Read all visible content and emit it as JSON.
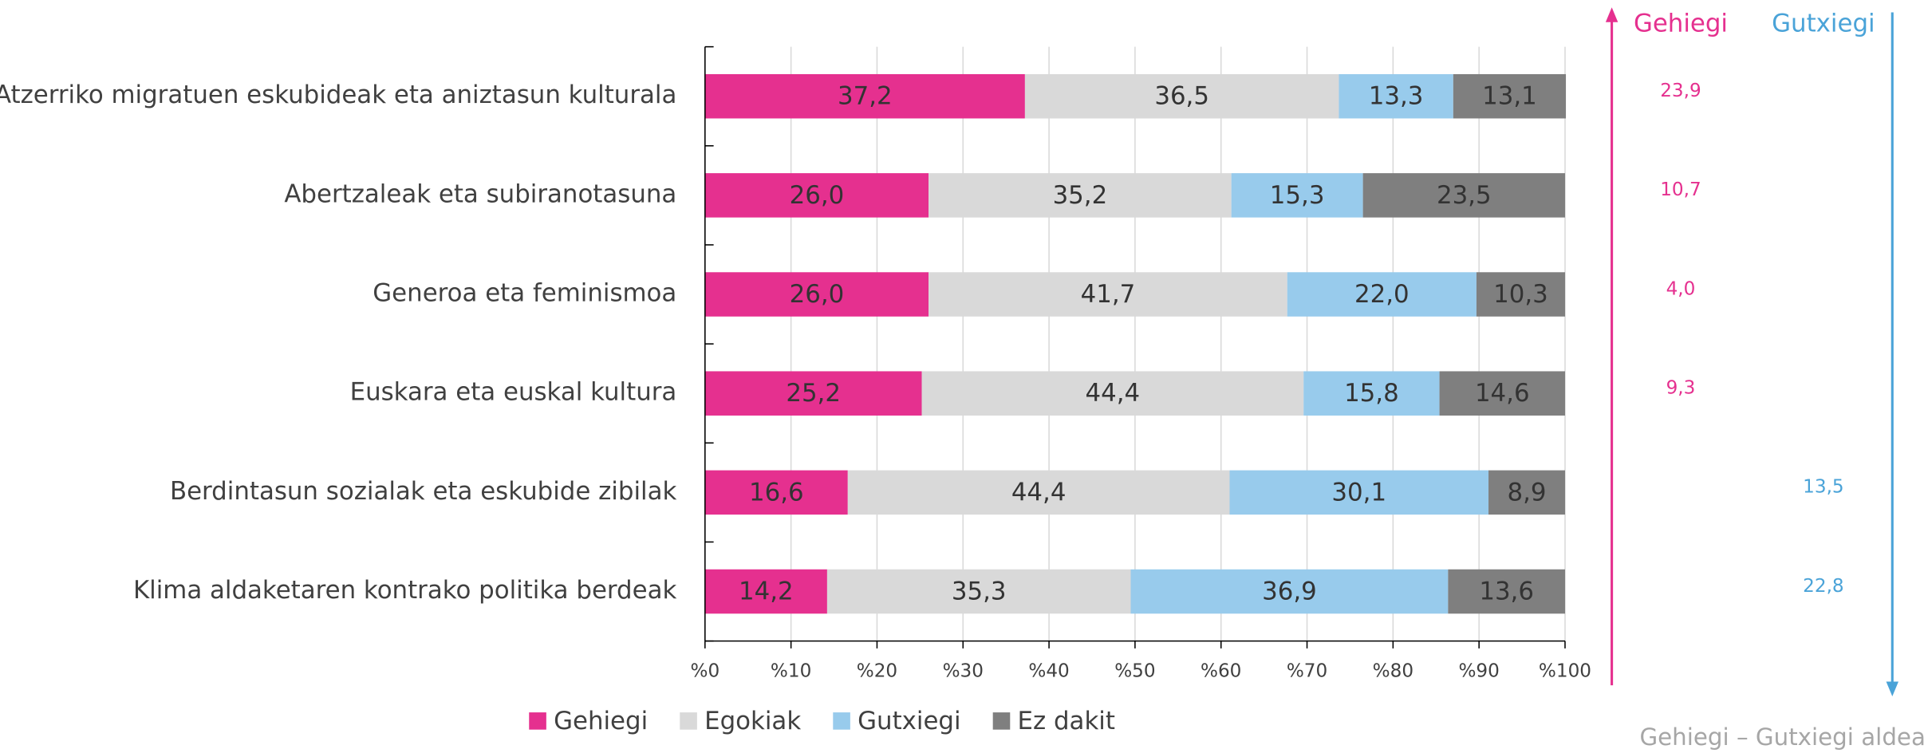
{
  "chart_data": {
    "type": "stacked-barh",
    "categories": [
      "Atzerriko migratuen eskubideak eta aniztasun kulturala",
      "Abertzaleak eta subiranotasuna",
      "Generoa eta feminismoa",
      "Euskara eta euskal kultura",
      "Berdintasun sozialak eta eskubide zibilak",
      "Klima aldaketaren kontrako politika berdeak"
    ],
    "series": [
      {
        "name": "Gehiegi",
        "color": "#e5308f",
        "values": [
          37.2,
          26.0,
          26.0,
          25.2,
          16.6,
          14.2
        ],
        "value_labels": [
          "37,2",
          "26,0",
          "26,0",
          "25,2",
          "16,6",
          "14,2"
        ]
      },
      {
        "name": "Egokiak",
        "color": "#d9d9d9",
        "values": [
          36.5,
          35.2,
          41.7,
          44.4,
          44.4,
          35.3
        ],
        "value_labels": [
          "36,5",
          "35,2",
          "41,7",
          "44,4",
          "44,4",
          "35,3"
        ]
      },
      {
        "name": "Gutxiegi",
        "color": "#98cbec",
        "values": [
          13.3,
          15.3,
          22.0,
          15.8,
          30.1,
          36.9
        ],
        "value_labels": [
          "13,3",
          "15,3",
          "22,0",
          "15,8",
          "30,1",
          "36,9"
        ]
      },
      {
        "name": "Ez dakit",
        "color": "#7f7f7f",
        "values": [
          13.1,
          23.5,
          10.3,
          14.6,
          8.9,
          13.6
        ],
        "value_labels": [
          "13,1",
          "23,5",
          "10,3",
          "14,6",
          "8,9",
          "13,6"
        ]
      }
    ],
    "xlim": [
      0,
      100
    ],
    "xticks": [
      {
        "value": 0,
        "label": "%0"
      },
      {
        "value": 10,
        "label": "%10"
      },
      {
        "value": 20,
        "label": "%20"
      },
      {
        "value": 30,
        "label": "%30"
      },
      {
        "value": 40,
        "label": "%40"
      },
      {
        "value": 50,
        "label": "%50"
      },
      {
        "value": 60,
        "label": "%60"
      },
      {
        "value": 70,
        "label": "%70"
      },
      {
        "value": 80,
        "label": "%80"
      },
      {
        "value": 90,
        "label": "%90"
      },
      {
        "value": 100,
        "label": "%100"
      }
    ],
    "grid": true,
    "legend": "bottom",
    "annotations": {
      "title": "Gehiegi – Gutxiegi aldea",
      "series": [
        {
          "name": "Gehiegi",
          "color": "#e5308f",
          "values": [
            23.9,
            10.7,
            4.0,
            9.3,
            null,
            null
          ],
          "value_labels": [
            "23,9",
            "10,7",
            "4,0",
            "9,3",
            null,
            null
          ]
        },
        {
          "name": "Gutxiegi",
          "color": "#4aa3d8",
          "values": [
            null,
            null,
            null,
            null,
            13.5,
            22.8
          ],
          "value_labels": [
            null,
            null,
            null,
            null,
            "13,5",
            "22,8"
          ]
        }
      ]
    }
  }
}
